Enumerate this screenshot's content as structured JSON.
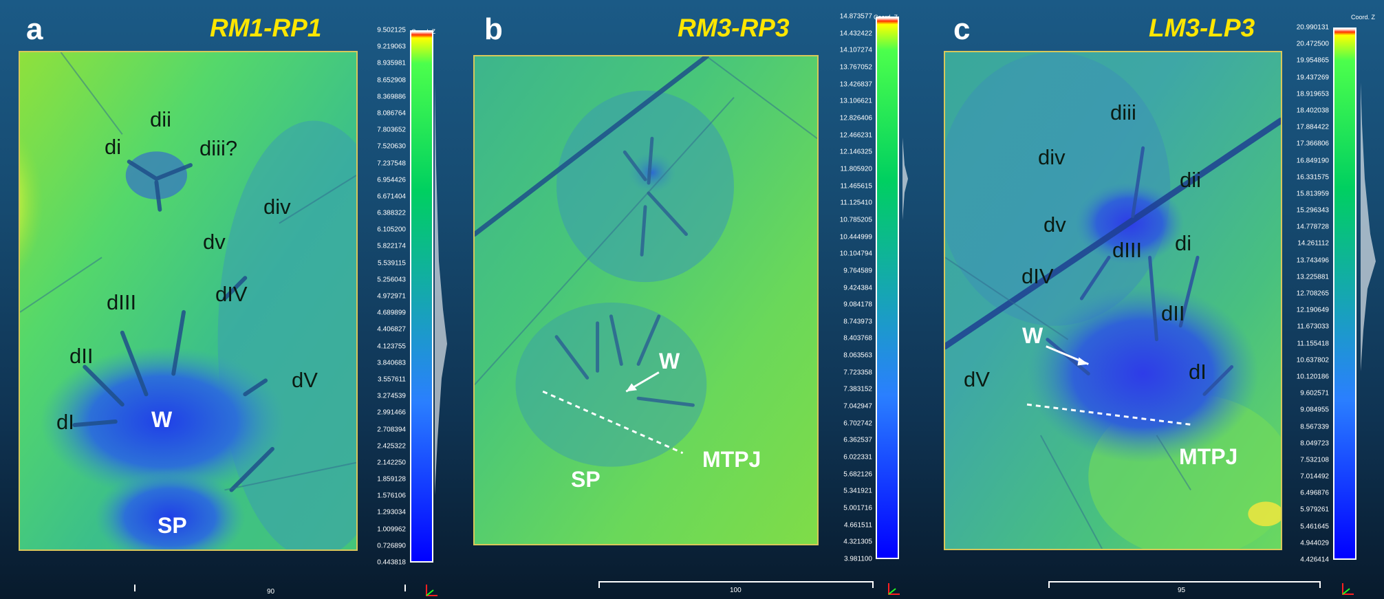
{
  "colors": {
    "title": "#ffe600",
    "label_dark": "#0b1b12",
    "label_light": "#ffffff",
    "ramp": [
      "#0000ff",
      "#2a7fff",
      "#00d060",
      "#4cff4c",
      "#ffff00",
      "#ff3000",
      "#ffffff"
    ]
  },
  "panels": [
    {
      "letter": "a",
      "title": "RM1-RP1",
      "colorbar_title": "Coord. Z",
      "ticks": [
        "9.502125",
        "9.219063",
        "8.935981",
        "8.652908",
        "8.369886",
        "8.086764",
        "7.803652",
        "7.520630",
        "7.237548",
        "6.954426",
        "6.671404",
        "6.388322",
        "6.105200",
        "5.822174",
        "5.539115",
        "5.256043",
        "4.972971",
        "4.689899",
        "4.406827",
        "4.123755",
        "3.840683",
        "3.557611",
        "3.274539",
        "2.991466",
        "2.708394",
        "2.425322",
        "2.142250",
        "1.859128",
        "1.576106",
        "1.293034",
        "1.009962",
        "0.726890",
        "0.443818"
      ],
      "scale_text": "90",
      "labels": {
        "dii": "dii",
        "di": "di",
        "diii": "diii?",
        "div": "div",
        "dv": "dv",
        "dIV": "dIV",
        "dIII": "dIII",
        "dII": "dII",
        "dI": "dI",
        "dV": "dV",
        "W": "W",
        "SP": "SP"
      }
    },
    {
      "letter": "b",
      "title": "RM3-RP3",
      "colorbar_title": "Coord. Z",
      "ticks": [
        "14.873577",
        "14.432422",
        "14.107274",
        "13.767052",
        "13.426837",
        "13.106621",
        "12.826406",
        "12.466231",
        "12.146325",
        "11.805920",
        "11.465615",
        "11.125410",
        "10.785205",
        "10.444999",
        "10.104794",
        "9.764589",
        "9.424384",
        "9.084178",
        "8.743973",
        "8.403768",
        "8.063563",
        "7.723358",
        "7.383152",
        "7.042947",
        "6.702742",
        "6.362537",
        "6.022331",
        "5.682126",
        "5.341921",
        "5.001716",
        "4.661511",
        "4.321305",
        "3.981100"
      ],
      "scale_text": "100",
      "labels": {
        "W": "W",
        "SP": "SP",
        "MTPJ": "MTPJ"
      }
    },
    {
      "letter": "c",
      "title": "LM3-LP3",
      "colorbar_title": "Coord. Z",
      "ticks": [
        "20.990131",
        "20.472500",
        "19.954865",
        "19.437269",
        "18.919653",
        "18.402038",
        "17.884422",
        "17.366806",
        "16.849190",
        "16.331575",
        "15.813959",
        "15.296343",
        "14.778728",
        "14.261112",
        "13.743496",
        "13.225881",
        "12.708265",
        "12.190649",
        "11.673033",
        "11.155418",
        "10.637802",
        "10.120186",
        "9.602571",
        "9.084955",
        "8.567339",
        "8.049723",
        "7.532108",
        "7.014492",
        "6.496876",
        "5.979261",
        "5.461645",
        "4.944029",
        "4.426414"
      ],
      "scale_text": "95",
      "labels": {
        "diii": "diii",
        "div": "div",
        "dii": "dii",
        "dv": "dv",
        "di": "di",
        "dIII": "dIII",
        "dIV": "dIV",
        "dII": "dII",
        "W": "W",
        "dV": "dV",
        "dI": "dI",
        "MTPJ": "MTPJ"
      }
    }
  ]
}
